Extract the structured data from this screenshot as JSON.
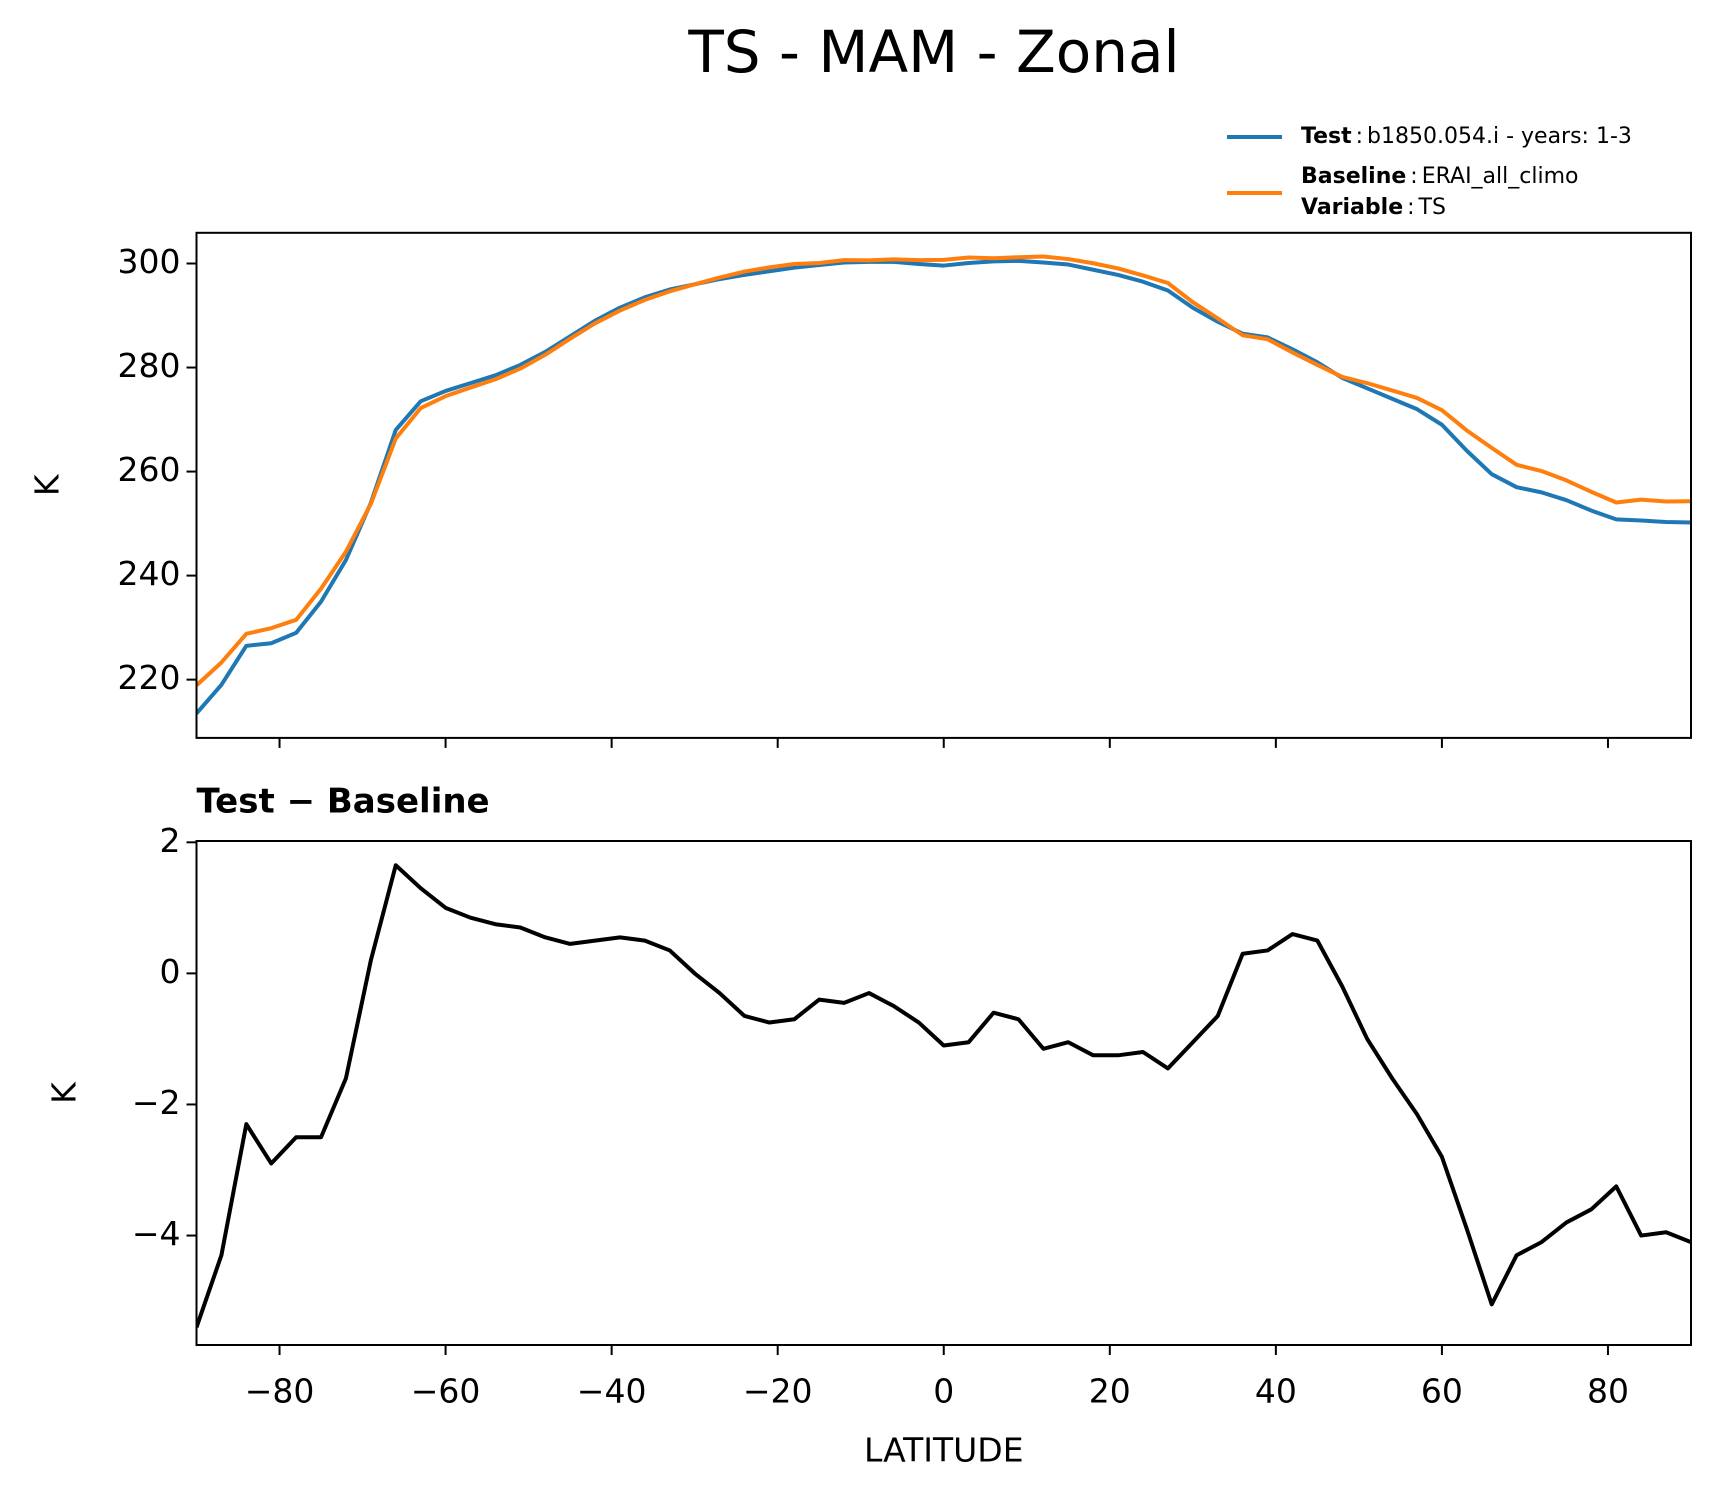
{
  "title": "TS - MAM - Zonal",
  "chart_data": [
    {
      "type": "line",
      "ylabel": "K",
      "x": [
        -90,
        -87,
        -84,
        -81,
        -78,
        -75,
        -72,
        -69,
        -66,
        -63,
        -60,
        -57,
        -54,
        -51,
        -48,
        -45,
        -42,
        -39,
        -36,
        -33,
        -30,
        -27,
        -24,
        -21,
        -18,
        -15,
        -12,
        -9,
        -6,
        -3,
        0,
        3,
        6,
        9,
        12,
        15,
        18,
        21,
        24,
        27,
        30,
        33,
        36,
        39,
        42,
        45,
        48,
        51,
        54,
        57,
        60,
        63,
        66,
        69,
        72,
        75,
        78,
        81,
        84,
        87,
        90
      ],
      "series": [
        {
          "name": "Test",
          "description": "b1850.054.i - years: 1-3",
          "color": "#1f77b4",
          "values": [
            213.5,
            219,
            226.5,
            227,
            229,
            235,
            243,
            254,
            268,
            273.5,
            275.5,
            277,
            278.5,
            280.5,
            283,
            286,
            289,
            291.5,
            293.5,
            295,
            296,
            297,
            297.8,
            298.5,
            299.2,
            299.7,
            300.2,
            300.3,
            300.3,
            299.9,
            299.6,
            300.1,
            300.4,
            300.5,
            300.2,
            299.8,
            298.8,
            297.8,
            296.5,
            294.8,
            291.5,
            288.8,
            286.5,
            285.8,
            283.5,
            281,
            278,
            276,
            274,
            272,
            269,
            264,
            259.5,
            257,
            256,
            254.5,
            252.5,
            250.8,
            250.6,
            250.3,
            250.2
          ]
        },
        {
          "name": "Baseline",
          "description": "ERAI_all_climo",
          "color": "#ff7f0e",
          "values": [
            218.9,
            223.3,
            228.8,
            229.9,
            231.5,
            237.5,
            244.6,
            253.8,
            266.35,
            272.2,
            274.5,
            276.15,
            277.75,
            279.8,
            282.45,
            285.55,
            288.5,
            290.95,
            293,
            294.65,
            296,
            297.3,
            298.45,
            299.25,
            299.9,
            300.1,
            300.65,
            300.6,
            300.8,
            300.65,
            300.7,
            301.15,
            301,
            301.2,
            301.35,
            300.85,
            300.05,
            299.05,
            297.7,
            296.25,
            292.55,
            289.45,
            286.2,
            285.45,
            282.9,
            280.5,
            278.2,
            277,
            275.6,
            274.15,
            271.8,
            267.9,
            264.55,
            261.3,
            260.1,
            258.3,
            256.1,
            254.05,
            254.6,
            254.25,
            254.3
          ]
        }
      ],
      "legend_separator": ":",
      "variable_label": "Variable",
      "variable": "TS",
      "xlim": [
        -90,
        90
      ],
      "xticks": [
        -80,
        -60,
        -40,
        -20,
        0,
        20,
        40,
        60,
        80
      ],
      "xticklabels": false,
      "ylim": [
        208.8,
        305.9
      ],
      "yticks": [
        220,
        240,
        260,
        280,
        300
      ]
    },
    {
      "type": "line",
      "title": "Test − Baseline",
      "xlabel": "LATITUDE",
      "ylabel": "K",
      "x": [
        -90,
        -87,
        -84,
        -81,
        -78,
        -75,
        -72,
        -69,
        -66,
        -63,
        -60,
        -57,
        -54,
        -51,
        -48,
        -45,
        -42,
        -39,
        -36,
        -33,
        -30,
        -27,
        -24,
        -21,
        -18,
        -15,
        -12,
        -9,
        -6,
        -3,
        0,
        3,
        6,
        9,
        12,
        15,
        18,
        21,
        24,
        27,
        30,
        33,
        36,
        39,
        42,
        45,
        48,
        51,
        54,
        57,
        60,
        63,
        66,
        69,
        72,
        75,
        78,
        81,
        84,
        87,
        90
      ],
      "series": [
        {
          "color": "#000000",
          "values": [
            -5.4,
            -4.3,
            -2.3,
            -2.9,
            -2.5,
            -2.5,
            -1.6,
            0.2,
            1.65,
            1.3,
            1.0,
            0.85,
            0.75,
            0.7,
            0.55,
            0.45,
            0.5,
            0.55,
            0.5,
            0.35,
            0.0,
            -0.3,
            -0.65,
            -0.75,
            -0.7,
            -0.4,
            -0.45,
            -0.3,
            -0.5,
            -0.75,
            -1.1,
            -1.05,
            -0.6,
            -0.7,
            -1.15,
            -1.05,
            -1.25,
            -1.25,
            -1.2,
            -1.45,
            -1.05,
            -0.65,
            0.3,
            0.35,
            0.6,
            0.5,
            -0.2,
            -1.0,
            -1.6,
            -2.15,
            -2.8,
            -3.9,
            -5.05,
            -4.3,
            -4.1,
            -3.8,
            -3.6,
            -3.25,
            -4.0,
            -3.95,
            -4.1
          ]
        }
      ],
      "xlim": [
        -90,
        90
      ],
      "xticks": [
        {
          "value": -80,
          "label": "−80"
        },
        {
          "value": -60,
          "label": "−60"
        },
        {
          "value": -40,
          "label": "−40"
        },
        {
          "value": -20,
          "label": "−20"
        },
        0,
        20,
        40,
        60,
        80
      ],
      "xticklabels": true,
      "ylim": [
        -5.67,
        2.02
      ],
      "yticks": [
        {
          "value": -4,
          "label": "−4"
        },
        {
          "value": -2,
          "label": "−2"
        },
        0,
        2
      ]
    }
  ]
}
